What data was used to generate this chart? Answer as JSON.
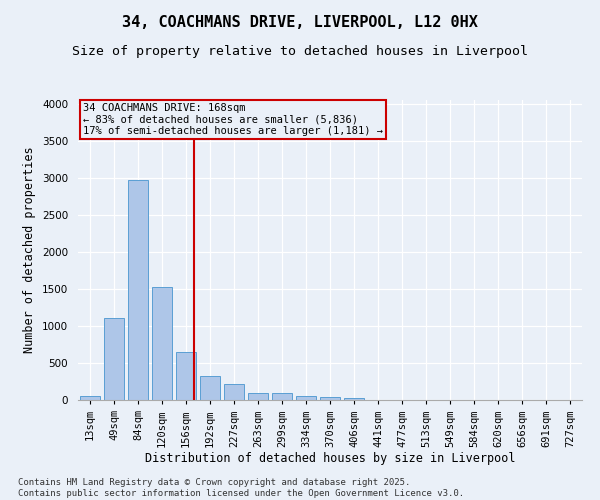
{
  "title_line1": "34, COACHMANS DRIVE, LIVERPOOL, L12 0HX",
  "title_line2": "Size of property relative to detached houses in Liverpool",
  "xlabel": "Distribution of detached houses by size in Liverpool",
  "ylabel": "Number of detached properties",
  "footnote": "Contains HM Land Registry data © Crown copyright and database right 2025.\nContains public sector information licensed under the Open Government Licence v3.0.",
  "categories": [
    "13sqm",
    "49sqm",
    "84sqm",
    "120sqm",
    "156sqm",
    "192sqm",
    "227sqm",
    "263sqm",
    "299sqm",
    "334sqm",
    "370sqm",
    "406sqm",
    "441sqm",
    "477sqm",
    "513sqm",
    "549sqm",
    "584sqm",
    "620sqm",
    "656sqm",
    "691sqm",
    "727sqm"
  ],
  "values": [
    50,
    1110,
    2970,
    1520,
    650,
    330,
    215,
    90,
    90,
    60,
    35,
    25,
    0,
    0,
    0,
    0,
    0,
    0,
    0,
    0,
    0
  ],
  "bar_color": "#aec6e8",
  "bar_edge_color": "#5a9fd4",
  "annotation_box_text": "34 COACHMANS DRIVE: 168sqm\n← 83% of detached houses are smaller (5,836)\n17% of semi-detached houses are larger (1,181) →",
  "annotation_line_color": "#cc0000",
  "annotation_box_edge_color": "#cc0000",
  "ylim": [
    0,
    4050
  ],
  "yticks": [
    0,
    500,
    1000,
    1500,
    2000,
    2500,
    3000,
    3500,
    4000
  ],
  "background_color": "#eaf0f8",
  "grid_color": "#ffffff",
  "title_fontsize": 11,
  "subtitle_fontsize": 9.5,
  "axis_label_fontsize": 8.5,
  "tick_fontsize": 7.5,
  "annotation_fontsize": 7.5,
  "footnote_fontsize": 6.5
}
